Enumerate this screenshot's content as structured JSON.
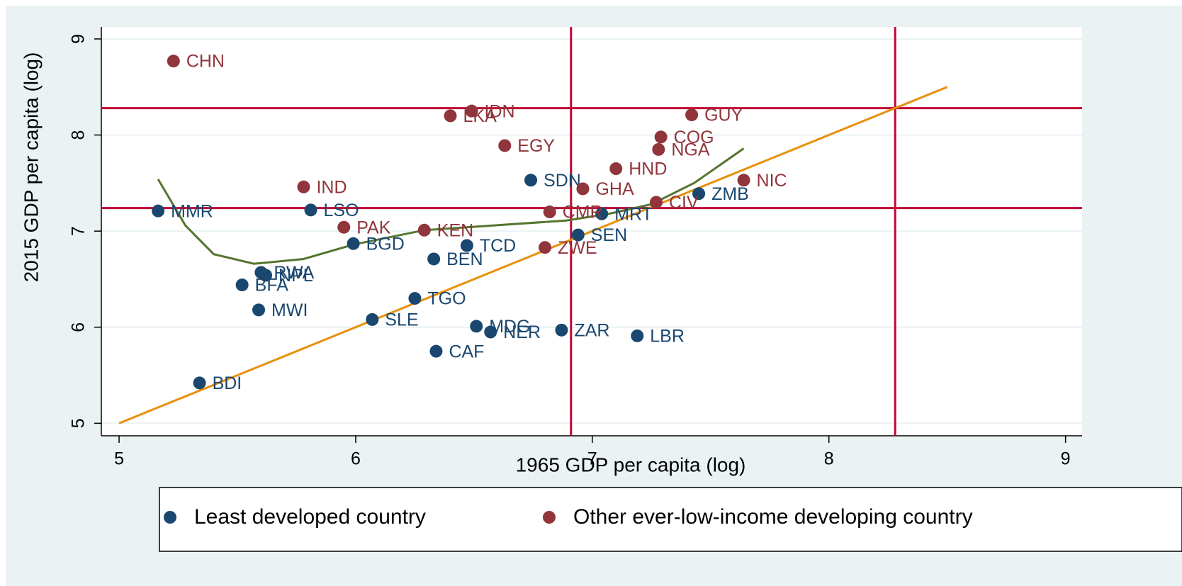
{
  "chart_data": {
    "type": "scatter",
    "xlabel": "1965 GDP per capita (log)",
    "ylabel": "2015 GDP per capita (log)",
    "xlim": [
      4.925,
      9.07
    ],
    "ylim": [
      4.87,
      9.125
    ],
    "xticks": [
      5,
      6,
      7,
      8,
      9
    ],
    "yticks": [
      5,
      6,
      7,
      8,
      9
    ],
    "grid": true,
    "series": [
      {
        "name": "Least developed country",
        "color": "#1a476f",
        "labels": [
          "MMR",
          "LSO",
          "BGD",
          "TCD",
          "BEN",
          "SDN",
          "SEN",
          "MRT",
          "ZMB",
          "RWA",
          "NPL",
          "BFA",
          "MWI",
          "TGO",
          "SLE",
          "MDG",
          "NER",
          "ZAR",
          "LBR",
          "CAF",
          "BDI"
        ],
        "x": [
          5.165,
          5.81,
          5.99,
          6.47,
          6.33,
          6.74,
          6.94,
          7.04,
          7.45,
          5.6,
          5.62,
          5.52,
          5.59,
          6.25,
          6.07,
          6.51,
          6.57,
          6.87,
          7.19,
          6.34,
          5.34
        ],
        "values": [
          7.21,
          7.22,
          6.87,
          6.85,
          6.71,
          7.53,
          6.96,
          7.18,
          7.39,
          6.57,
          6.54,
          6.44,
          6.18,
          6.3,
          6.08,
          6.01,
          5.95,
          5.97,
          5.91,
          5.75,
          5.42
        ]
      },
      {
        "name": "Other ever-low-income developing country",
        "color": "#90353b",
        "labels": [
          "CHN",
          "IDN",
          "LKA",
          "EGY",
          "IND",
          "PAK",
          "KEN",
          "GHA",
          "HND",
          "CMR",
          "ZWE",
          "CIV",
          "COG",
          "NGA",
          "GUY",
          "NIC"
        ],
        "x": [
          5.23,
          6.49,
          6.4,
          6.63,
          5.78,
          5.95,
          6.29,
          6.96,
          7.1,
          6.82,
          6.8,
          7.27,
          7.29,
          7.28,
          7.42,
          7.64
        ],
        "values": [
          8.77,
          8.25,
          8.2,
          7.89,
          7.46,
          7.04,
          7.01,
          7.44,
          7.65,
          7.2,
          6.83,
          7.3,
          7.98,
          7.85,
          8.21,
          7.53
        ]
      }
    ],
    "lines": [
      {
        "color": "#e8900c",
        "x": [
          5,
          8.5
        ],
        "values": [
          5,
          8.5
        ]
      },
      {
        "color": "#55752f",
        "x": [
          5.165,
          5.28,
          5.4,
          5.57,
          5.78,
          5.99,
          6.29,
          6.59,
          6.89,
          7.07,
          7.25,
          7.43,
          7.64
        ],
        "values": [
          7.54,
          7.06,
          6.76,
          6.66,
          6.71,
          6.86,
          7.01,
          7.06,
          7.11,
          7.18,
          7.28,
          7.5,
          7.86
        ]
      }
    ],
    "xlines": [
      6.91,
      8.28
    ],
    "ylines": [
      8.28,
      7.24
    ],
    "refline_color": "#c10534"
  }
}
